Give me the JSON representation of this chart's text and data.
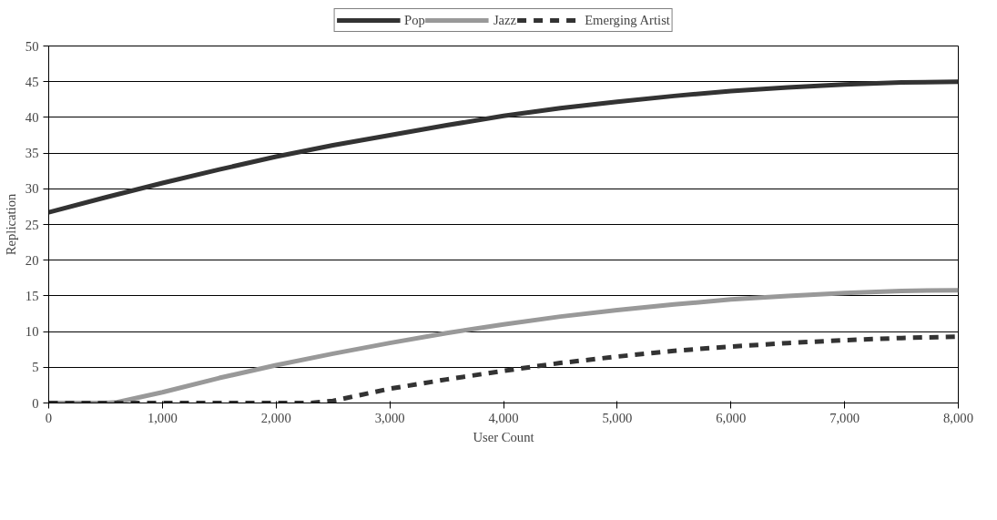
{
  "chart_data": {
    "type": "line",
    "xlabel": "User Count",
    "ylabel": "Replication",
    "xlim": [
      0,
      8000
    ],
    "ylim": [
      0,
      50
    ],
    "xticks": [
      0,
      {
        "value": 1000,
        "label": "1,000"
      },
      {
        "value": 2000,
        "label": "2,000"
      },
      {
        "value": 3000,
        "label": "3,000"
      },
      {
        "value": 4000,
        "label": "4,000"
      },
      {
        "value": 5000,
        "label": "5,000"
      },
      {
        "value": 6000,
        "label": "6,000"
      },
      {
        "value": 7000,
        "label": "7,000"
      },
      {
        "value": 8000,
        "label": "8,000"
      }
    ],
    "yticks": [
      0,
      5,
      10,
      15,
      20,
      25,
      30,
      35,
      40,
      45,
      50
    ],
    "grid": "y",
    "legend": "top",
    "marker": "none",
    "series": [
      {
        "name": "Pop",
        "color": "#333333",
        "line_style": "solid",
        "x": [
          0,
          500,
          1000,
          1500,
          2000,
          2500,
          3000,
          3500,
          4000,
          4500,
          5000,
          5500,
          6000,
          6500,
          7000,
          7500,
          8000
        ],
        "values": [
          26.7,
          28.8,
          30.8,
          32.7,
          34.5,
          36.1,
          37.5,
          38.9,
          40.2,
          41.3,
          42.2,
          43.0,
          43.7,
          44.2,
          44.6,
          44.9,
          45.0
        ]
      },
      {
        "name": "Jazz",
        "color": "#999999",
        "line_style": "solid",
        "x": [
          0,
          500,
          600,
          1000,
          1500,
          2000,
          2500,
          3000,
          3500,
          4000,
          4500,
          5000,
          5500,
          6000,
          6500,
          7000,
          7500,
          8000
        ],
        "values": [
          0,
          0,
          0.1,
          1.5,
          3.5,
          5.3,
          6.9,
          8.4,
          9.8,
          11.0,
          12.1,
          13.0,
          13.8,
          14.5,
          15.0,
          15.4,
          15.7,
          15.8
        ]
      },
      {
        "name": "Emerging Artist",
        "color": "#333333",
        "line_style": "dashed",
        "x": [
          0,
          2300,
          2500,
          3000,
          3500,
          4000,
          4500,
          5000,
          5500,
          6000,
          6500,
          7000,
          7500,
          8000
        ],
        "values": [
          0,
          0,
          0.3,
          2.0,
          3.3,
          4.5,
          5.6,
          6.5,
          7.3,
          7.9,
          8.4,
          8.8,
          9.1,
          9.3
        ]
      }
    ]
  }
}
